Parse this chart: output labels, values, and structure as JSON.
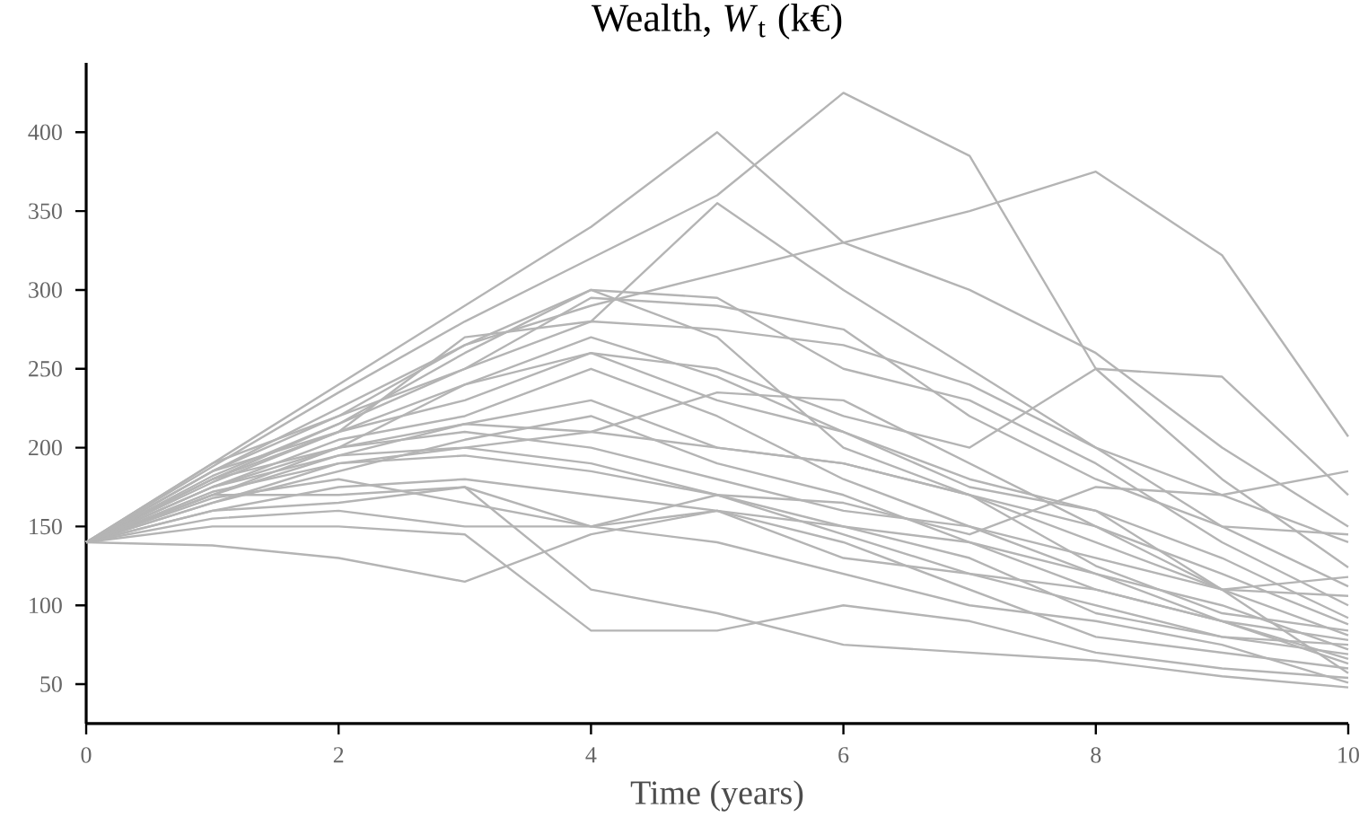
{
  "chart_data": {
    "type": "line",
    "title": "Wealth, *W*$_{t}$ (k€)",
    "xlabel": "Time (years)",
    "x": [
      0,
      1,
      2,
      3,
      4,
      5,
      6,
      7,
      8,
      9,
      10
    ],
    "xlim": [
      0,
      10
    ],
    "xticks": [
      0,
      2,
      4,
      6,
      8,
      10
    ],
    "ylim": [
      25,
      444
    ],
    "yticks": [
      50,
      100,
      150,
      200,
      250,
      300,
      350,
      400
    ],
    "grid": false,
    "marker": "none",
    "line_style": "solid",
    "series": [
      {
        "color": "#b4b4b4",
        "values": [
          140,
          190,
          240,
          290,
          340,
          400,
          330,
          300,
          260,
          200,
          150
        ]
      },
      {
        "color": "#b4b4b4",
        "values": [
          140,
          188,
          235,
          280,
          320,
          360,
          425,
          385,
          250,
          180,
          124
        ]
      },
      {
        "color": "#b4b4b4",
        "values": [
          140,
          185,
          225,
          265,
          290,
          310,
          330,
          350,
          375,
          322,
          207
        ]
      },
      {
        "color": "#b4b4b4",
        "values": [
          140,
          180,
          215,
          250,
          280,
          355,
          300,
          250,
          200,
          150,
          112
        ]
      },
      {
        "color": "#b4b4b4",
        "values": [
          140,
          185,
          220,
          265,
          300,
          295,
          250,
          230,
          190,
          140,
          100
        ]
      },
      {
        "color": "#b4b4b4",
        "values": [
          140,
          180,
          210,
          270,
          280,
          275,
          265,
          240,
          200,
          170,
          185
        ]
      },
      {
        "color": "#b4b4b4",
        "values": [
          140,
          175,
          200,
          240,
          260,
          250,
          220,
          200,
          250,
          245,
          170
        ]
      },
      {
        "color": "#b4b4b4",
        "values": [
          140,
          190,
          220,
          250,
          295,
          290,
          275,
          220,
          180,
          150,
          145
        ]
      },
      {
        "color": "#b4b4b4",
        "values": [
          140,
          178,
          210,
          230,
          260,
          230,
          210,
          180,
          160,
          130,
          92
        ]
      },
      {
        "color": "#b4b4b4",
        "values": [
          140,
          170,
          195,
          215,
          230,
          200,
          190,
          170,
          140,
          110,
          81
        ]
      },
      {
        "color": "#b4b4b4",
        "values": [
          140,
          175,
          205,
          220,
          250,
          220,
          180,
          150,
          120,
          100,
          72
        ]
      },
      {
        "color": "#b4b4b4",
        "values": [
          140,
          165,
          185,
          205,
          220,
          190,
          170,
          140,
          110,
          90,
          63
        ]
      },
      {
        "color": "#b4b4b4",
        "values": [
          140,
          170,
          200,
          210,
          200,
          180,
          160,
          150,
          130,
          110,
          118
        ]
      },
      {
        "color": "#b4b4b4",
        "values": [
          140,
          160,
          175,
          180,
          170,
          160,
          130,
          120,
          110,
          90,
          78
        ]
      },
      {
        "color": "#b4b4b4",
        "values": [
          140,
          165,
          190,
          200,
          190,
          170,
          145,
          120,
          100,
          80,
          69
        ]
      },
      {
        "color": "#b4b4b4",
        "values": [
          140,
          180,
          200,
          215,
          210,
          200,
          190,
          170,
          150,
          110,
          57
        ]
      },
      {
        "color": "#b4b4b4",
        "values": [
          140,
          160,
          165,
          175,
          150,
          140,
          120,
          100,
          90,
          75,
          51
        ]
      },
      {
        "color": "#b4b4b4",
        "values": [
          140,
          155,
          160,
          150,
          150,
          160,
          150,
          140,
          120,
          90,
          66
        ]
      },
      {
        "color": "#b4b4b4",
        "values": [
          140,
          138,
          130,
          115,
          145,
          160,
          140,
          110,
          80,
          70,
          60
        ]
      },
      {
        "color": "#b4b4b4",
        "values": [
          140,
          150,
          150,
          145,
          84,
          84,
          100,
          90,
          70,
          60,
          54
        ]
      },
      {
        "color": "#b4b4b4",
        "values": [
          140,
          170,
          170,
          175,
          110,
          95,
          75,
          70,
          65,
          55,
          48
        ]
      },
      {
        "color": "#b4b4b4",
        "values": [
          140,
          175,
          195,
          200,
          210,
          235,
          230,
          190,
          150,
          120,
          88
        ]
      },
      {
        "color": "#b4b4b4",
        "values": [
          140,
          185,
          210,
          240,
          270,
          245,
          210,
          175,
          160,
          110,
          106
        ]
      },
      {
        "color": "#b4b4b4",
        "values": [
          140,
          172,
          190,
          195,
          185,
          170,
          150,
          130,
          95,
          80,
          75
        ]
      },
      {
        "color": "#b4b4b4",
        "values": [
          140,
          182,
          215,
          260,
          300,
          270,
          200,
          170,
          125,
          95,
          84
        ]
      },
      {
        "color": "#b4b4b4",
        "values": [
          140,
          168,
          180,
          165,
          150,
          170,
          165,
          145,
          175,
          170,
          140
        ]
      }
    ]
  }
}
